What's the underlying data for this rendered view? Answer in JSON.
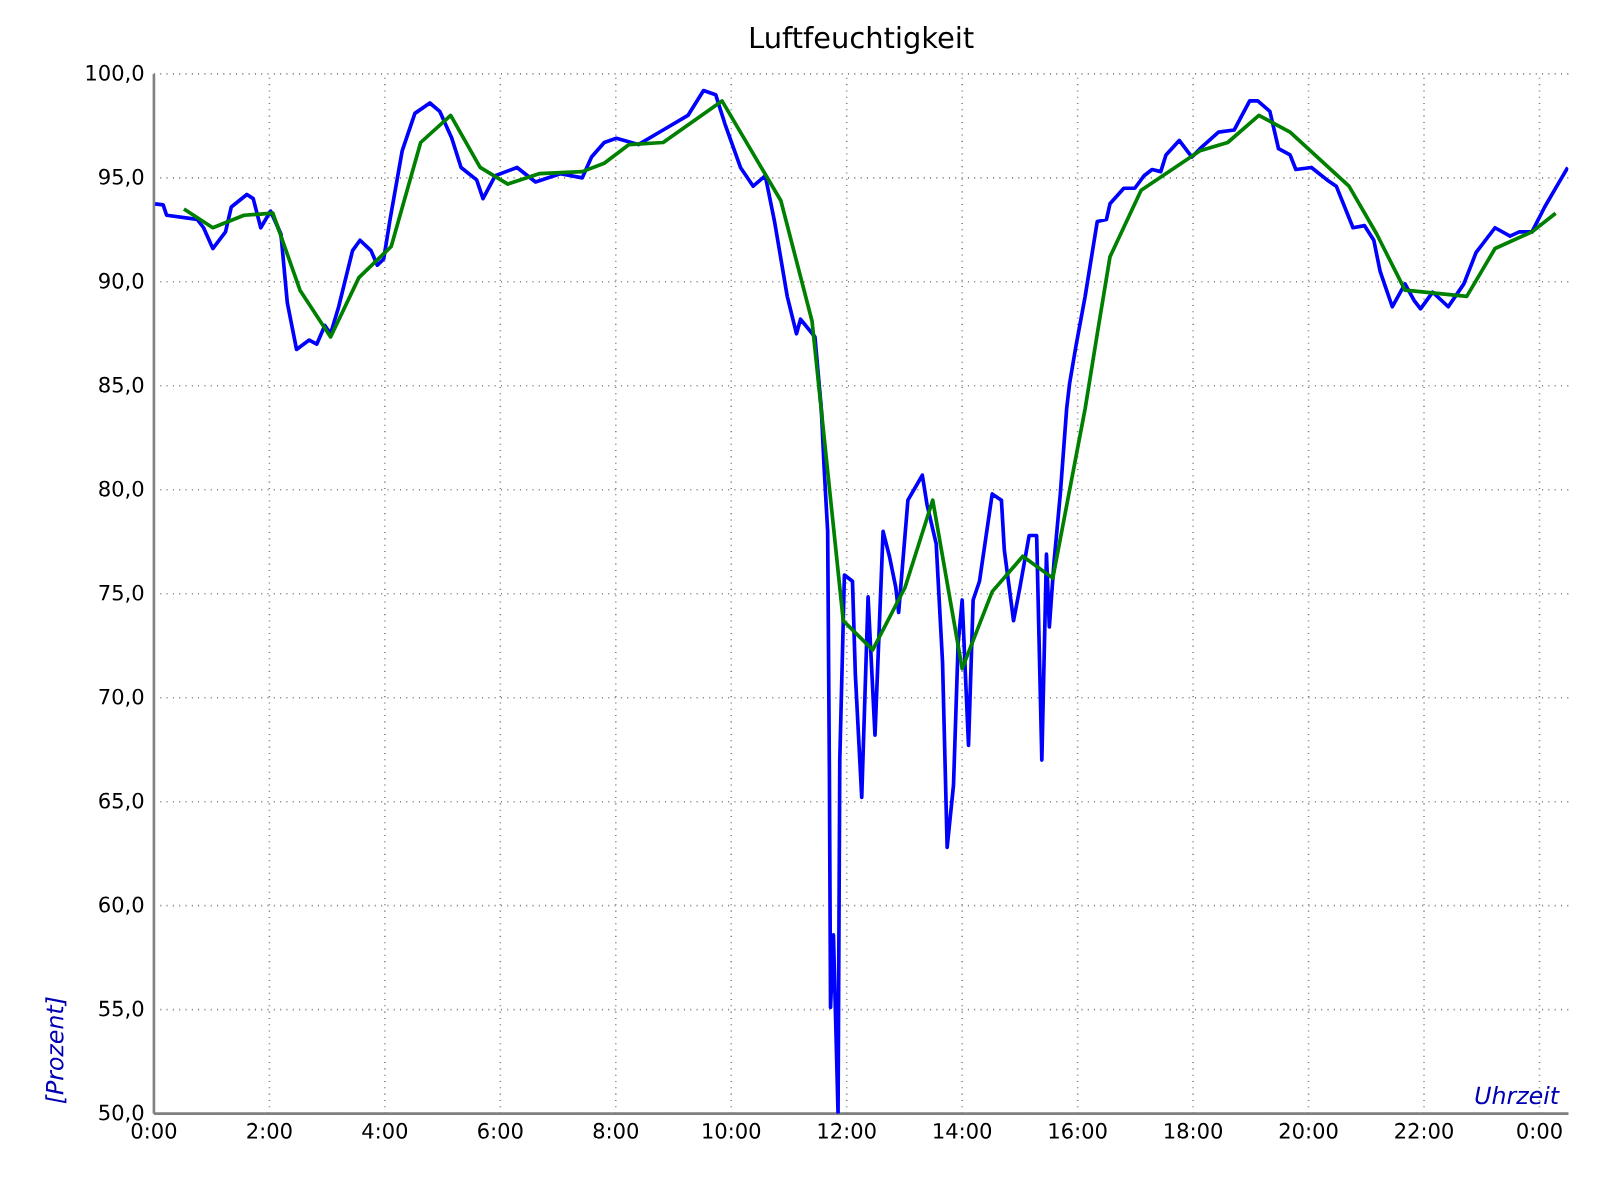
{
  "chart_data": {
    "type": "line",
    "title": "Luftfeuchtigkeit",
    "xlabel": "Uhrzeit",
    "ylabel": "[Prozent]",
    "xlim": [
      0,
      24.5
    ],
    "ylim": [
      50,
      100
    ],
    "xticks": [
      {
        "value": 0,
        "label": "0:00"
      },
      {
        "value": 2,
        "label": "2:00"
      },
      {
        "value": 4,
        "label": "4:00"
      },
      {
        "value": 6,
        "label": "6:00"
      },
      {
        "value": 8,
        "label": "8:00"
      },
      {
        "value": 10,
        "label": "10:00"
      },
      {
        "value": 12,
        "label": "12:00"
      },
      {
        "value": 14,
        "label": "14:00"
      },
      {
        "value": 16,
        "label": "16:00"
      },
      {
        "value": 18,
        "label": "18:00"
      },
      {
        "value": 20,
        "label": "20:00"
      },
      {
        "value": 22,
        "label": "22:00"
      },
      {
        "value": 24,
        "label": "0:00"
      }
    ],
    "yticks": [
      {
        "value": 50,
        "label": "50,0"
      },
      {
        "value": 55,
        "label": "55,0"
      },
      {
        "value": 60,
        "label": "60,0"
      },
      {
        "value": 65,
        "label": "65,0"
      },
      {
        "value": 70,
        "label": "70,0"
      },
      {
        "value": 75,
        "label": "75,0"
      },
      {
        "value": 80,
        "label": "80,0"
      },
      {
        "value": 85,
        "label": "85,0"
      },
      {
        "value": 90,
        "label": "90,0"
      },
      {
        "value": 95,
        "label": "95,0"
      },
      {
        "value": 100,
        "label": "100,0"
      }
    ],
    "grid": true,
    "series": [
      {
        "color": "#0000ff",
        "x": [
          0.02,
          0.16,
          0.22,
          0.75,
          0.86,
          1.02,
          1.24,
          1.34,
          1.61,
          1.72,
          1.85,
          2.02,
          2.2,
          2.31,
          2.47,
          2.69,
          2.82,
          2.96,
          3.06,
          3.2,
          3.44,
          3.57,
          3.76,
          3.87,
          3.98,
          4.09,
          4.3,
          4.52,
          4.78,
          4.95,
          5.16,
          5.32,
          5.59,
          5.7,
          5.91,
          6.29,
          6.61,
          7.04,
          7.42,
          7.58,
          7.8,
          8.01,
          8.39,
          8.82,
          9.25,
          9.52,
          9.73,
          9.89,
          10.16,
          10.38,
          10.59,
          10.75,
          10.97,
          11.13,
          11.2,
          11.45,
          11.56,
          11.61,
          11.67,
          11.7,
          11.72,
          11.77,
          11.85,
          11.88,
          11.96,
          12.1,
          12.15,
          12.26,
          12.37,
          12.49,
          12.63,
          12.74,
          12.85,
          12.9,
          13.06,
          13.31,
          13.39,
          13.55,
          13.66,
          13.74,
          13.85,
          13.93,
          14.0,
          14.11,
          14.19,
          14.3,
          14.52,
          14.68,
          14.73,
          14.89,
          15.0,
          15.16,
          15.29,
          15.38,
          15.46,
          15.51,
          15.59,
          15.7,
          15.81,
          15.86,
          15.97,
          16.13,
          16.34,
          16.5,
          16.56,
          16.8,
          16.99,
          17.15,
          17.29,
          17.44,
          17.53,
          17.76,
          17.98,
          18.12,
          18.44,
          18.71,
          18.98,
          19.12,
          19.33,
          19.48,
          19.68,
          19.78,
          20.05,
          20.32,
          20.48,
          20.77,
          20.97,
          21.13,
          21.24,
          21.45,
          21.67,
          21.83,
          21.94,
          22.15,
          22.42,
          22.69,
          22.9,
          23.23,
          23.49,
          23.65,
          23.87,
          24.09,
          24.3,
          24.49
        ],
        "values": [
          93.75,
          93.7,
          93.2,
          93.0,
          92.6,
          91.6,
          92.4,
          93.6,
          94.2,
          94.0,
          92.6,
          93.4,
          92.3,
          89.0,
          86.75,
          87.2,
          87.0,
          87.9,
          87.5,
          88.8,
          91.5,
          92.0,
          91.5,
          90.8,
          91.1,
          93.0,
          96.3,
          98.1,
          98.6,
          98.2,
          96.9,
          95.5,
          94.9,
          94.0,
          95.1,
          95.5,
          94.8,
          95.2,
          95.0,
          96.0,
          96.7,
          96.9,
          96.6,
          97.3,
          98.0,
          99.2,
          99.0,
          97.6,
          95.5,
          94.6,
          95.1,
          92.9,
          89.3,
          87.5,
          88.2,
          87.35,
          83.9,
          81.0,
          78.0,
          66.4,
          55.1,
          58.6,
          50.0,
          67.0,
          75.9,
          75.6,
          71.1,
          65.2,
          74.85,
          68.2,
          78.0,
          76.8,
          75.3,
          74.1,
          79.5,
          80.7,
          79.3,
          77.4,
          71.7,
          62.8,
          65.8,
          72.6,
          74.7,
          67.7,
          74.7,
          75.6,
          79.8,
          79.5,
          77.1,
          73.7,
          75.3,
          77.8,
          77.8,
          67.0,
          76.9,
          73.4,
          76.5,
          79.8,
          83.9,
          85.1,
          86.9,
          89.3,
          92.9,
          93.0,
          93.75,
          94.5,
          94.5,
          95.1,
          95.4,
          95.3,
          96.1,
          96.8,
          96.0,
          96.4,
          97.2,
          97.3,
          98.7,
          98.7,
          98.2,
          96.4,
          96.1,
          95.4,
          95.5,
          94.9,
          94.6,
          92.6,
          92.7,
          92.0,
          90.5,
          88.8,
          89.9,
          89.1,
          88.7,
          89.5,
          88.8,
          89.9,
          91.4,
          92.6,
          92.2,
          92.4,
          92.4,
          93.6,
          94.6,
          95.5
        ]
      },
      {
        "color": "#008000",
        "x": [
          0.52,
          1.02,
          1.56,
          2.06,
          2.53,
          3.06,
          3.55,
          4.11,
          4.62,
          5.14,
          5.65,
          6.13,
          6.67,
          7.42,
          7.8,
          8.23,
          8.82,
          9.84,
          10.86,
          11.4,
          11.94,
          12.45,
          13.01,
          13.49,
          14.0,
          14.52,
          15.05,
          15.57,
          16.13,
          16.34,
          16.56,
          17.1,
          18.12,
          18.6,
          19.14,
          19.68,
          20.7,
          21.18,
          21.67,
          22.74,
          23.23,
          23.87,
          24.28
        ],
        "values": [
          93.5,
          92.6,
          93.2,
          93.3,
          89.6,
          87.35,
          90.2,
          91.7,
          96.7,
          98.0,
          95.5,
          94.7,
          95.2,
          95.3,
          95.7,
          96.6,
          96.7,
          98.7,
          93.9,
          88.1,
          73.7,
          72.3,
          75.3,
          79.5,
          71.4,
          75.1,
          76.8,
          75.75,
          83.9,
          87.5,
          91.2,
          94.4,
          96.3,
          96.7,
          98.0,
          97.2,
          94.6,
          92.3,
          89.6,
          89.3,
          91.6,
          92.4,
          93.3
        ]
      }
    ]
  }
}
